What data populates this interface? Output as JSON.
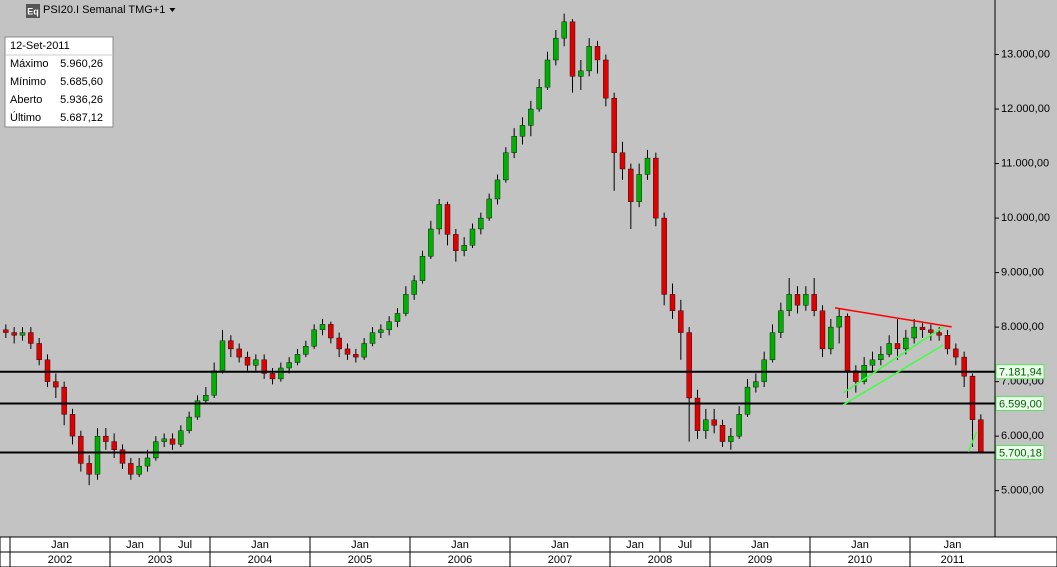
{
  "chart_data": {
    "type": "candlestick",
    "title": "PSI20.I Semanal TMG+1",
    "icon": "Eq",
    "x": [
      "2001-12",
      "2002-01",
      "2002-02",
      "2002-03",
      "2002-04",
      "2002-05",
      "2002-06",
      "2002-07",
      "2002-08",
      "2002-09",
      "2002-10",
      "2002-11",
      "2002-12",
      "2003-01",
      "2003-02",
      "2003-03",
      "2003-04",
      "2003-05",
      "2003-06",
      "2003-07",
      "2003-08",
      "2003-09",
      "2003-10",
      "2003-11",
      "2003-12",
      "2004-01",
      "2004-02",
      "2004-03",
      "2004-04",
      "2004-05",
      "2004-06",
      "2004-07",
      "2004-08",
      "2004-09",
      "2004-10",
      "2004-11",
      "2004-12",
      "2005-01",
      "2005-02",
      "2005-03",
      "2005-04",
      "2005-05",
      "2005-06",
      "2005-07",
      "2005-08",
      "2005-09",
      "2005-10",
      "2005-11",
      "2005-12",
      "2006-01",
      "2006-02",
      "2006-03",
      "2006-04",
      "2006-05",
      "2006-06",
      "2006-07",
      "2006-08",
      "2006-09",
      "2006-10",
      "2006-11",
      "2006-12",
      "2007-01",
      "2007-02",
      "2007-03",
      "2007-04",
      "2007-05",
      "2007-06",
      "2007-07",
      "2007-08",
      "2007-09",
      "2007-10",
      "2007-11",
      "2007-12",
      "2008-01",
      "2008-02",
      "2008-03",
      "2008-04",
      "2008-05",
      "2008-06",
      "2008-07",
      "2008-08",
      "2008-09",
      "2008-10",
      "2008-11",
      "2008-12",
      "2009-01",
      "2009-02",
      "2009-03",
      "2009-04",
      "2009-05",
      "2009-06",
      "2009-07",
      "2009-08",
      "2009-09",
      "2009-10",
      "2009-11",
      "2009-12",
      "2010-01",
      "2010-02",
      "2010-03",
      "2010-04",
      "2010-05",
      "2010-06",
      "2010-07",
      "2010-08",
      "2010-09",
      "2010-10",
      "2010-11",
      "2010-12",
      "2011-01",
      "2011-02",
      "2011-03",
      "2011-04",
      "2011-05",
      "2011-06",
      "2011-07",
      "2011-08",
      "2011-09"
    ],
    "open": [
      7950,
      7900,
      7850,
      7900,
      7700,
      7400,
      7000,
      6900,
      6400,
      6000,
      5500,
      5300,
      6000,
      5900,
      5750,
      5500,
      5300,
      5450,
      5600,
      5900,
      5950,
      5850,
      6100,
      6350,
      6650,
      6750,
      7200,
      7750,
      7600,
      7450,
      7300,
      7400,
      7150,
      7050,
      7250,
      7350,
      7500,
      7650,
      7950,
      8050,
      7800,
      7600,
      7500,
      7450,
      7700,
      7900,
      7950,
      8100,
      8250,
      8600,
      8850,
      9300,
      9800,
      10250,
      9700,
      9400,
      9500,
      9800,
      10000,
      10350,
      10700,
      11200,
      11500,
      11700,
      12000,
      12400,
      12900,
      13300,
      13600,
      12600,
      12700,
      13150,
      12900,
      12200,
      11200,
      10900,
      10300,
      10800,
      11100,
      10000,
      8600,
      8300,
      7900,
      6700,
      6100,
      6300,
      6200,
      5900,
      6000,
      6400,
      6900,
      7000,
      7400,
      7900,
      8300,
      8600,
      8400,
      8600,
      8300,
      7600,
      8000,
      8200,
      7200,
      7000,
      7300,
      7400,
      7500,
      7700,
      7600,
      7800,
      8000,
      7950,
      7900,
      7850,
      7600,
      7450,
      7100,
      6300
    ],
    "high": [
      8050,
      8000,
      8000,
      8000,
      7800,
      7500,
      7150,
      7000,
      6500,
      6100,
      5650,
      6150,
      6150,
      6050,
      5850,
      5600,
      5600,
      5750,
      6000,
      6050,
      6050,
      6200,
      6450,
      6750,
      6900,
      7350,
      7950,
      7850,
      7700,
      7550,
      7500,
      7500,
      7250,
      7350,
      7450,
      7600,
      7750,
      8050,
      8150,
      8100,
      7900,
      7700,
      7600,
      7800,
      8000,
      8050,
      8200,
      8350,
      8750,
      8950,
      9400,
      9950,
      10350,
      10300,
      9800,
      9650,
      9900,
      10100,
      10450,
      10800,
      11300,
      11650,
      11850,
      12150,
      12550,
      13050,
      13450,
      13750,
      13650,
      12900,
      13300,
      13250,
      13000,
      12300,
      11400,
      11000,
      11000,
      11250,
      11200,
      10100,
      8800,
      8500,
      8000,
      6850,
      6500,
      6500,
      6300,
      6150,
      6550,
      7050,
      7150,
      7550,
      8050,
      8450,
      8900,
      8750,
      8750,
      8900,
      8400,
      8150,
      8350,
      8250,
      7300,
      7450,
      7550,
      7650,
      7850,
      8150,
      7950,
      8150,
      8100,
      8050,
      8000,
      7950,
      7700,
      7550,
      7150,
      6400
    ],
    "low": [
      7800,
      7700,
      7750,
      7600,
      7300,
      6900,
      6700,
      6200,
      5850,
      5350,
      5100,
      5200,
      5750,
      5600,
      5400,
      5200,
      5250,
      5350,
      5550,
      5800,
      5750,
      5800,
      6050,
      6300,
      6600,
      6700,
      7150,
      7450,
      7350,
      7200,
      7200,
      7050,
      6950,
      7000,
      7150,
      7300,
      7450,
      7600,
      7850,
      7700,
      7450,
      7400,
      7350,
      7400,
      7650,
      7800,
      7850,
      8000,
      8200,
      8500,
      8800,
      9250,
      9700,
      9500,
      9200,
      9300,
      9450,
      9700,
      9950,
      10250,
      10650,
      11100,
      11350,
      11500,
      11950,
      12350,
      12800,
      13150,
      12300,
      12350,
      12600,
      12650,
      12050,
      10500,
      10700,
      9800,
      10200,
      10700,
      9850,
      8400,
      8150,
      7400,
      5900,
      5950,
      5950,
      6050,
      5800,
      5750,
      5950,
      6350,
      6800,
      6900,
      7350,
      7800,
      8200,
      8250,
      8300,
      8200,
      7450,
      7500,
      7700,
      6700,
      6800,
      6950,
      7200,
      7300,
      7450,
      7400,
      7500,
      7700,
      7800,
      7750,
      7750,
      7500,
      7300,
      6900,
      5800,
      5685.6
    ],
    "close": [
      7900,
      7850,
      7900,
      7700,
      7400,
      7000,
      6900,
      6400,
      6000,
      5500,
      5300,
      6000,
      5900,
      5750,
      5500,
      5300,
      5450,
      5600,
      5900,
      5950,
      5850,
      6100,
      6350,
      6650,
      6750,
      7200,
      7750,
      7600,
      7450,
      7300,
      7400,
      7150,
      7050,
      7250,
      7350,
      7500,
      7650,
      7950,
      8050,
      7800,
      7600,
      7500,
      7450,
      7700,
      7900,
      7950,
      8100,
      8250,
      8600,
      8850,
      9300,
      9800,
      10250,
      9700,
      9400,
      9500,
      9800,
      10000,
      10350,
      10700,
      11200,
      11500,
      11700,
      12000,
      12400,
      12900,
      13300,
      13600,
      12600,
      12700,
      13150,
      12900,
      12200,
      11200,
      10900,
      10300,
      10800,
      11100,
      10000,
      8600,
      8300,
      7900,
      6700,
      6100,
      6300,
      6200,
      5900,
      6000,
      6400,
      6900,
      7000,
      7400,
      7900,
      8300,
      8600,
      8400,
      8600,
      8300,
      7600,
      8000,
      8200,
      7200,
      7000,
      7300,
      7400,
      7500,
      7700,
      7600,
      7800,
      8000,
      7950,
      7900,
      7850,
      7600,
      7450,
      7100,
      6300,
      5687.12
    ],
    "up_color": "#00b000",
    "down_color": "#e00000",
    "ylim": [
      4150,
      14000
    ],
    "yticks": [
      {
        "value": 5000,
        "label": "5.000,00"
      },
      {
        "value": 6000,
        "label": "6.000,00"
      },
      {
        "value": 7000,
        "label": "7.000,00"
      },
      {
        "value": 8000,
        "label": "8.000,00"
      },
      {
        "value": 9000,
        "label": "9.000,00"
      },
      {
        "value": 10000,
        "label": "10.000,00"
      },
      {
        "value": 11000,
        "label": "11.000,00"
      },
      {
        "value": 12000,
        "label": "12.000,00"
      },
      {
        "value": 13000,
        "label": "13.000,00"
      }
    ],
    "x_month_labels": [
      {
        "value": "2002-01",
        "label": "Jan"
      },
      {
        "value": "2003-01",
        "label": "Jan"
      },
      {
        "value": "2003-07",
        "label": "Jul"
      },
      {
        "value": "2004-01",
        "label": "Jan"
      },
      {
        "value": "2005-01",
        "label": "Jan"
      },
      {
        "value": "2006-01",
        "label": "Jan"
      },
      {
        "value": "2007-01",
        "label": "Jan"
      },
      {
        "value": "2008-01",
        "label": "Jan"
      },
      {
        "value": "2008-07",
        "label": "Jul"
      },
      {
        "value": "2009-01",
        "label": "Jan"
      },
      {
        "value": "2010-01",
        "label": "Jan"
      },
      {
        "value": "2011-01",
        "label": "Jan"
      }
    ],
    "x_year_labels": [
      "2002",
      "2003",
      "2004",
      "2005",
      "2006",
      "2007",
      "2008",
      "2009",
      "2010",
      "2011"
    ],
    "levels": [
      {
        "value": 7181.94,
        "label": "7.181,94"
      },
      {
        "value": 6599,
        "label": "6.599,00"
      },
      {
        "value": 5700.18,
        "label": "5.700,18"
      }
    ],
    "trendlines": [
      {
        "color": "#ff0000",
        "x": [
          "2010-04",
          "2011-06"
        ],
        "y": [
          8352,
          8004
        ]
      },
      {
        "color": "#40ff40",
        "x": [
          "2010-05",
          "2011-05"
        ],
        "y": [
          6795,
          8004
        ]
      },
      {
        "color": "#40ff40",
        "x": [
          "2010-05",
          "2011-05"
        ],
        "y": [
          6575,
          7674
        ]
      },
      {
        "color": "#40ff40",
        "x": [
          "2011-08",
          "2011-09"
        ],
        "y": [
          5714,
          6080
        ]
      }
    ],
    "info_box": {
      "date": "12-Set-2011",
      "rows": [
        [
          "Máximo",
          "5.960,26"
        ],
        [
          "Mínimo",
          "5.685,60"
        ],
        [
          "Aberto",
          "5.936,26"
        ],
        [
          "Último",
          "5.687,12"
        ]
      ]
    }
  }
}
